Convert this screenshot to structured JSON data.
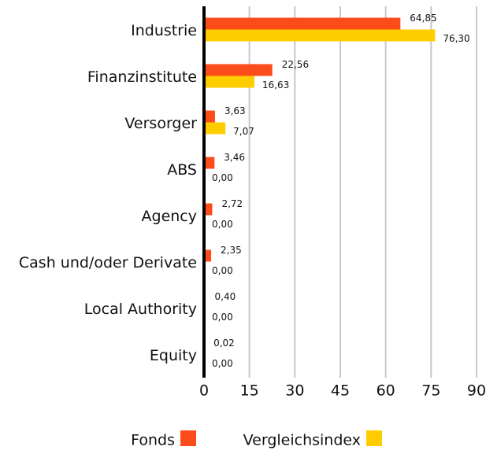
{
  "chart_data": {
    "type": "bar",
    "orientation": "horizontal",
    "categories": [
      "Industrie",
      "Finanzinstitute",
      "Versorger",
      "ABS",
      "Agency",
      "Cash und/oder Derivate",
      "Local Authority",
      "Equity"
    ],
    "series": [
      {
        "name": "Fonds",
        "color": "#fc4c1a",
        "values": [
          64.85,
          22.56,
          3.63,
          3.46,
          2.72,
          2.35,
          0.4,
          0.02
        ],
        "value_labels": [
          "64,85",
          "22,56",
          "3,63",
          "3,46",
          "2,72",
          "2,35",
          "0,40",
          "0,02"
        ]
      },
      {
        "name": "Vergleichsindex",
        "color": "#ffcc00",
        "values": [
          76.3,
          16.63,
          7.07,
          0,
          0,
          0,
          0,
          0
        ],
        "value_labels": [
          "76,30",
          "16,63",
          "7,07",
          "0,00",
          "0,00",
          "0,00",
          "0,00",
          "0,00"
        ]
      }
    ],
    "xlim": [
      0,
      90
    ],
    "xticks": [
      0,
      15,
      30,
      45,
      60,
      75,
      90
    ],
    "grid": true,
    "legend": "bottom"
  }
}
